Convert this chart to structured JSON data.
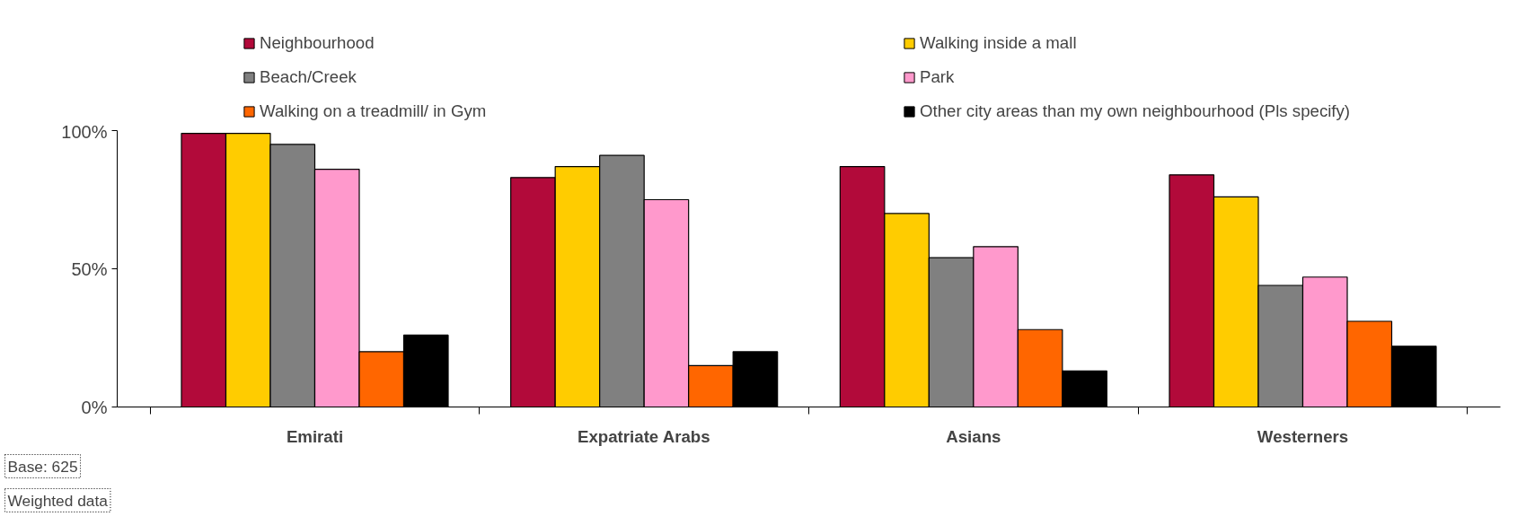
{
  "chart_data": {
    "type": "bar",
    "categories": [
      "Emirati",
      "Expatriate Arabs",
      "Asians",
      "Westerners"
    ],
    "series": [
      {
        "name": "Neighbourhood",
        "color": "#b20a3a",
        "values": [
          99,
          83,
          87,
          84
        ]
      },
      {
        "name": "Walking inside a mall",
        "color": "#ffcc00",
        "values": [
          99,
          87,
          70,
          76
        ]
      },
      {
        "name": "Beach/Creek",
        "color": "#808080",
        "values": [
          95,
          91,
          54,
          44
        ]
      },
      {
        "name": "Park",
        "color": "#ff99cc",
        "values": [
          86,
          75,
          58,
          47
        ]
      },
      {
        "name": "Walking on a treadmill/ in Gym",
        "color": "#ff6600",
        "values": [
          20,
          15,
          28,
          31
        ]
      },
      {
        "name": "Other city areas than my own neighbourhood (Pls specify)",
        "color": "#000000",
        "values": [
          26,
          20,
          13,
          22
        ]
      }
    ],
    "ylim": [
      0,
      100
    ],
    "yticks": [
      {
        "value": 0,
        "label": "0%"
      },
      {
        "value": 50,
        "label": "50%"
      },
      {
        "value": 100,
        "label": "100%"
      }
    ],
    "grid": false,
    "legend": "top",
    "annotations": [
      "Base: 625",
      "Weighted data"
    ]
  }
}
